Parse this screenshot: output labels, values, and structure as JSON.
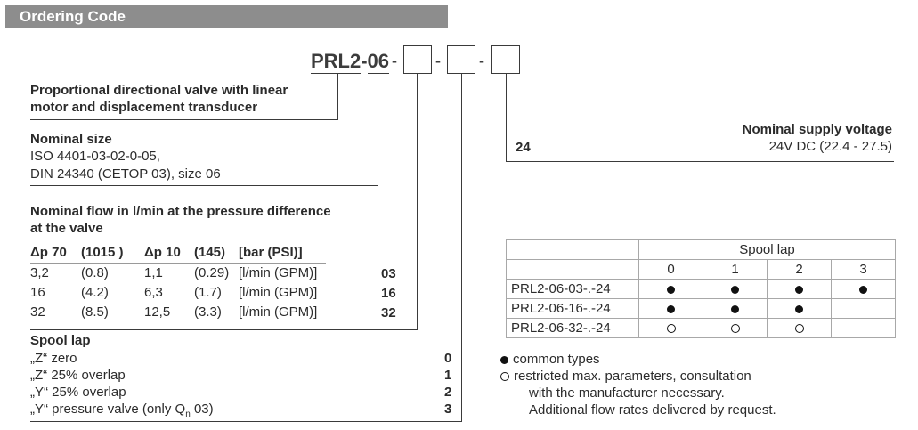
{
  "header": {
    "title": "Ordering Code"
  },
  "code": {
    "prefix": "PRL2-06",
    "separator": "-"
  },
  "sections": {
    "valve_desc": [
      "Proportional directional valve with linear",
      "motor and displacement transducer"
    ],
    "nominal_size": {
      "title": "Nominal size",
      "lines": [
        "ISO 4401-03-02-0-05,",
        "DIN 24340 (CETOP 03), size 06"
      ]
    },
    "nominal_flow": {
      "title_lines": [
        "Nominal flow in l/min at the pressure difference",
        "at the valve"
      ],
      "headers": [
        "Δp 70",
        "(1015 )",
        "Δp 10",
        "(145)",
        "[bar (PSI)]"
      ],
      "rows": [
        {
          "c1": "3,2",
          "c2": "(0.8)",
          "c3": "1,1",
          "c4": "(0.29)",
          "c5": "[l/min (GPM)]",
          "code": "03"
        },
        {
          "c1": "16",
          "c2": "(4.2)",
          "c3": "6,3",
          "c4": "(1.7)",
          "c5": "[l/min (GPM)]",
          "code": "16"
        },
        {
          "c1": "32",
          "c2": "(8.5)",
          "c3": "12,5",
          "c4": "(3.3)",
          "c5": "[l/min (GPM)]",
          "code": "32"
        }
      ]
    },
    "spool_lap": {
      "title": "Spool lap",
      "items": [
        {
          "label": "„Z“ zero",
          "code": "0"
        },
        {
          "label": "„Z“ 25% overlap",
          "code": "1"
        },
        {
          "label": "„Y“ 25% overlap",
          "code": "2"
        },
        {
          "label_main": "„Y“ pressure valve (only Q",
          "label_sub": "n",
          "label_end": " 03)",
          "code": "3"
        }
      ]
    },
    "supply_voltage": {
      "title": "Nominal supply voltage",
      "value": "24V DC (22.4 - 27.5)",
      "code": "24"
    }
  },
  "spool_table": {
    "header": "Spool lap",
    "columns": [
      "0",
      "1",
      "2",
      "3"
    ],
    "rows": [
      {
        "label": "PRL2-06-03-.-24",
        "cells": [
          "dot",
          "dot",
          "dot",
          "dot"
        ]
      },
      {
        "label": "PRL2-06-16-.-24",
        "cells": [
          "dot",
          "dot",
          "dot",
          ""
        ]
      },
      {
        "label": "PRL2-06-32-.-24",
        "cells": [
          "ring",
          "ring",
          "ring",
          ""
        ]
      }
    ]
  },
  "legend": {
    "common": "common types",
    "restricted_lines": [
      "restricted max. parameters, consultation",
      "with the manufacturer necessary.",
      "Additional flow rates delivered by request."
    ]
  }
}
